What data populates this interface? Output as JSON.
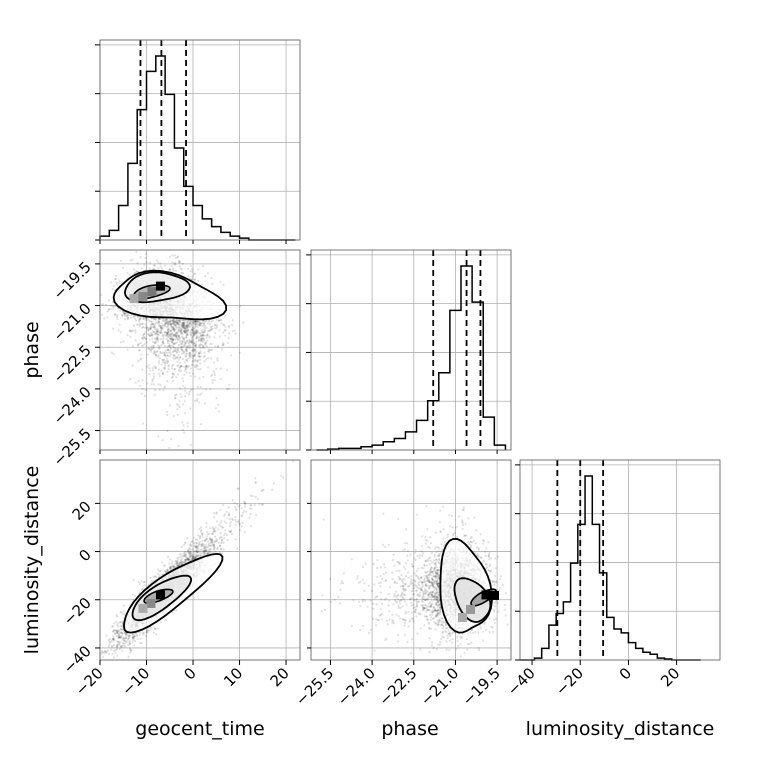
{
  "chart_data": {
    "type": "corner",
    "grid": true,
    "parameters": [
      {
        "name": "geocent_time",
        "label": "geocent_time",
        "range": [
          -20,
          23
        ],
        "ticks": [
          -20,
          -10,
          0,
          10,
          20
        ],
        "tick_labels": [
          "−20",
          "−10",
          "0",
          "10",
          "20"
        ],
        "quantiles": [
          -11.3,
          -6.8,
          -1.5
        ]
      },
      {
        "name": "phase",
        "label": "phase",
        "range": [
          -26.2,
          -19.0
        ],
        "ticks": [
          -25.5,
          -24.0,
          -22.5,
          -21.0,
          -19.5
        ],
        "tick_labels": [
          "−25.5",
          "−24.0",
          "−22.5",
          "−21.0",
          "−19.5"
        ],
        "quantiles": [
          -21.8,
          -20.6,
          -20.1
        ]
      },
      {
        "name": "luminosity_distance",
        "label": "luminosity_distance",
        "range": [
          -45,
          38
        ],
        "ticks": [
          -40,
          -20,
          0,
          20
        ],
        "tick_labels": [
          "−40",
          "−20",
          "0",
          "20"
        ],
        "quantiles": [
          -29.5,
          -20,
          -10.5
        ]
      }
    ],
    "histograms": [
      {
        "param": "geocent_time",
        "bin_edges": [
          -20,
          -18,
          -16,
          -14,
          -12,
          -10,
          -8,
          -6,
          -4,
          -2,
          0,
          2,
          4,
          6,
          8,
          10,
          12,
          14,
          16,
          18,
          20,
          22
        ],
        "counts": [
          2,
          5,
          18,
          40,
          68,
          88,
          96,
          76,
          48,
          28,
          18,
          11,
          7,
          4,
          2,
          1,
          0,
          0,
          0,
          0,
          0
        ]
      },
      {
        "param": "phase",
        "bin_edges": [
          -26.0,
          -25.6,
          -25.2,
          -24.8,
          -24.4,
          -24.0,
          -23.6,
          -23.2,
          -22.8,
          -22.4,
          -22.0,
          -21.6,
          -21.2,
          -20.8,
          -20.4,
          -20.0,
          -19.6,
          -19.2
        ],
        "counts": [
          0,
          0.5,
          1,
          1,
          2,
          3,
          5,
          7,
          11,
          18,
          30,
          47,
          85,
          112,
          90,
          20,
          3
        ]
      },
      {
        "param": "luminosity_distance",
        "bin_edges": [
          -45,
          -42,
          -39,
          -36,
          -33,
          -30,
          -27,
          -24,
          -21,
          -18,
          -15,
          -12,
          -9,
          -6,
          -3,
          0,
          3,
          6,
          9,
          12,
          15,
          18,
          21,
          24,
          27,
          30
        ],
        "counts": [
          0,
          0,
          1,
          6,
          18,
          24,
          30,
          50,
          70,
          95,
          70,
          45,
          22,
          16,
          14,
          9,
          6,
          4,
          3,
          1,
          0.5,
          0,
          0,
          0,
          0
        ]
      }
    ],
    "pairs": [
      {
        "x": "geocent_time",
        "y": "phase",
        "mode": [
          -7,
          -20.3
        ]
      },
      {
        "x": "geocent_time",
        "y": "luminosity_distance",
        "mode": [
          -7,
          -18
        ]
      },
      {
        "x": "phase",
        "y": "luminosity_distance",
        "mode": [
          -19.9,
          -18
        ]
      }
    ]
  }
}
